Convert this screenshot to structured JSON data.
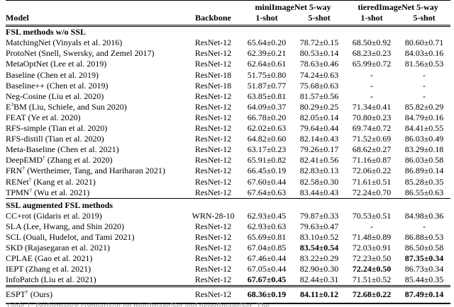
{
  "colors": {
    "text": "#000000",
    "background": "#ffffff",
    "caption_faint": "#9a9a9a"
  },
  "table": {
    "group_headers": [
      "miniImageNet 5-way",
      "tieredImageNet 5-way"
    ],
    "headers": {
      "model": "Model",
      "backbone": "Backbone",
      "shots": [
        "1-shot",
        "5-shot",
        "1-shot",
        "5-shot"
      ]
    },
    "sections": [
      {
        "title": "FSL methods w/o SSL",
        "rows": [
          {
            "name": [
              {
                "t": "MatchingNet (Vinyals et al. 2016)"
              }
            ],
            "backbone": "ResNet-12",
            "cells": [
              "65.64±0.20",
              "78.72±0.15",
              "68.50±0.92",
              "80.60±0.71"
            ],
            "bold": [
              0,
              0,
              0,
              0
            ]
          },
          {
            "name": [
              {
                "t": "ProtoNet (Snell, Swersky, and Zemel 2017)"
              }
            ],
            "backbone": "ResNet-12",
            "cells": [
              "62.39±0.21",
              "80.53±0.14",
              "68.23±0.23",
              "84.03±0.16"
            ],
            "bold": [
              0,
              0,
              0,
              0
            ]
          },
          {
            "name": [
              {
                "t": "MetaOptNet (Lee et al. 2019)"
              }
            ],
            "backbone": "ResNet-12",
            "cells": [
              "62.64±0.61",
              "78.63±0.46",
              "65.99±0.72",
              "81.56±0.53"
            ],
            "bold": [
              0,
              0,
              0,
              0
            ]
          },
          {
            "name": [
              {
                "t": "Baseline (Chen et al. 2019)"
              }
            ],
            "backbone": "ResNet-18",
            "cells": [
              "51.75±0.80",
              "74.24±0.63",
              "-",
              "-"
            ],
            "bold": [
              0,
              0,
              0,
              0
            ]
          },
          {
            "name": [
              {
                "t": "Baseline++ (Chen et al. 2019)"
              }
            ],
            "backbone": "ResNet-18",
            "cells": [
              "51.87±0.77",
              "75.68±0.63",
              "-",
              "-"
            ],
            "bold": [
              0,
              0,
              0,
              0
            ]
          },
          {
            "name": [
              {
                "t": "Neg-Cosine (Liu et al. 2020)"
              }
            ],
            "backbone": "ResNet-12",
            "cells": [
              "63.85±0.81",
              "81.57±0.56",
              "-",
              "-"
            ],
            "bold": [
              0,
              0,
              0,
              0
            ]
          },
          {
            "name": [
              {
                "t": "E"
              },
              {
                "t": "3",
                "sup": true
              },
              {
                "t": "BM (Liu, Schiele, and Sun 2020)"
              }
            ],
            "backbone": "ResNet-12",
            "cells": [
              "64.09±0.37",
              "80.29±0.25",
              "71.34±0.41",
              "85.82±0.29"
            ],
            "bold": [
              0,
              0,
              0,
              0
            ]
          },
          {
            "name": [
              {
                "t": "FEAT (Ye et al. 2020)"
              }
            ],
            "backbone": "ResNet-12",
            "cells": [
              "66.78±0.20",
              "82.05±0.14",
              "70.80±0.23",
              "84.79±0.16"
            ],
            "bold": [
              0,
              0,
              0,
              0
            ]
          },
          {
            "name": [
              {
                "t": "RFS-simple (Tian et al. 2020)"
              }
            ],
            "backbone": "ResNet-12",
            "cells": [
              "62.02±0.63",
              "79.64±0.44",
              "69.74±0.72",
              "84.41±0.55"
            ],
            "bold": [
              0,
              0,
              0,
              0
            ]
          },
          {
            "name": [
              {
                "t": "RFS-distill (Tian et al. 2020)"
              }
            ],
            "backbone": "ResNet-12",
            "cells": [
              "64.82±0.60",
              "82.14±0.43",
              "71.52±0.69",
              "86.03±0.49"
            ],
            "bold": [
              0,
              0,
              0,
              0
            ]
          },
          {
            "name": [
              {
                "t": "Meta-Baseline (Chen et al. 2021)"
              }
            ],
            "backbone": "ResNet-12",
            "cells": [
              "63.17±0.23",
              "79.26±0.17",
              "68.62±0.27",
              "83.29±0.18"
            ],
            "bold": [
              0,
              0,
              0,
              0
            ]
          },
          {
            "name": [
              {
                "t": "DeepEMD"
              },
              {
                "t": "†",
                "sup": true
              },
              {
                "t": " (Zhang et al. 2020)"
              }
            ],
            "backbone": "ResNet-12",
            "cells": [
              "65.91±0.82",
              "82.41±0.56",
              "71.16±0.87",
              "86.03±0.58"
            ],
            "bold": [
              0,
              0,
              0,
              0
            ]
          },
          {
            "name": [
              {
                "t": "FRN"
              },
              {
                "t": "†",
                "sup": true
              },
              {
                "t": " (Wertheimer, Tang, and Hariharan 2021)"
              }
            ],
            "backbone": "ResNet-12",
            "cells": [
              "66.45±0.19",
              "82.83±0.13",
              "72.06±0.22",
              "86.89±0.14"
            ],
            "bold": [
              0,
              0,
              0,
              0
            ]
          },
          {
            "name": [
              {
                "t": "RENet"
              },
              {
                "t": "†",
                "sup": true
              },
              {
                "t": " (Kang et al. 2021)"
              }
            ],
            "backbone": "ResNet-12",
            "cells": [
              "67.60±0.44",
              "82.58±0.30",
              "71.61±0.51",
              "85.28±0.35"
            ],
            "bold": [
              0,
              0,
              0,
              0
            ]
          },
          {
            "name": [
              {
                "t": "TPMN"
              },
              {
                "t": "†",
                "sup": true
              },
              {
                "t": " (Wu et al. 2021)"
              }
            ],
            "backbone": "ResNet-12",
            "cells": [
              "67.64±0.63",
              "83.44±0.43",
              "72.24±0.70",
              "86.55±0.63"
            ],
            "bold": [
              0,
              0,
              0,
              0
            ]
          }
        ]
      },
      {
        "title": "SSL augmented FSL methods",
        "rows": [
          {
            "name": [
              {
                "t": "CC+rot (Gidaris et al. 2019)"
              }
            ],
            "backbone": "WRN-28-10",
            "cells": [
              "62.93±0.45",
              "79.87±0.33",
              "70.53±0.51",
              "84.98±0.36"
            ],
            "bold": [
              0,
              0,
              0,
              0
            ]
          },
          {
            "name": [
              {
                "t": "SLA (Lee, Hwang, and Shin 2020)"
              }
            ],
            "backbone": "ResNet-12",
            "cells": [
              "62.93±0.63",
              "79.63±0.47",
              "-",
              "-"
            ],
            "bold": [
              0,
              0,
              0,
              0
            ]
          },
          {
            "name": [
              {
                "t": "SCL (Ouali, Hudelot, and Tami 2021)"
              }
            ],
            "backbone": "ResNet-12",
            "cells": [
              "65.69±0.81",
              "83.10±0.52",
              "71.48±0.89",
              "86.88±0.53"
            ],
            "bold": [
              0,
              0,
              0,
              0
            ]
          },
          {
            "name": [
              {
                "t": "SKD (Rajasegaran et al. 2021)"
              }
            ],
            "backbone": "ResNet-12",
            "cells": [
              "67.04±0.85",
              "83.54±0.54",
              "72.03±0.91",
              "86.50±0.58"
            ],
            "bold": [
              0,
              1,
              0,
              0
            ]
          },
          {
            "name": [
              {
                "t": "CPLAE (Gao et al. 2021)"
              }
            ],
            "backbone": "ResNet-12",
            "cells": [
              "67.46±0.44",
              "83.22±0.29",
              "72.23±0.50",
              "87.35±0.34"
            ],
            "bold": [
              0,
              0,
              0,
              1
            ]
          },
          {
            "name": [
              {
                "t": "IEPT (Zhang et al. 2021)"
              }
            ],
            "backbone": "ResNet-12",
            "cells": [
              "67.05±0.44",
              "82.90±0.30",
              "72.24±0.50",
              "86.73±0.34"
            ],
            "bold": [
              0,
              0,
              1,
              0
            ]
          },
          {
            "name": [
              {
                "t": "InfoPatch (Liu et al. 2021)"
              }
            ],
            "backbone": "ResNet-12",
            "cells": [
              "67.67±0.45",
              "82.44±0.31",
              "71.51±0.52",
              "85.44±0.35"
            ],
            "bold": [
              1,
              0,
              0,
              0
            ]
          }
        ]
      },
      {
        "title": "",
        "rows": [
          {
            "name": [
              {
                "t": "ESPT"
              },
              {
                "t": "†",
                "sup": true
              },
              {
                "t": " (Ours)"
              }
            ],
            "backbone": "ResNet-12",
            "cells": [
              "68.36±0.19",
              "84.11±0.12",
              "72.68±0.22",
              "87.49±0.14"
            ],
            "bold": [
              1,
              1,
              1,
              1
            ]
          }
        ]
      }
    ],
    "caption_partial": "Table 1: Performance comparison on miniImageNet and tieredImageNet. The"
  }
}
